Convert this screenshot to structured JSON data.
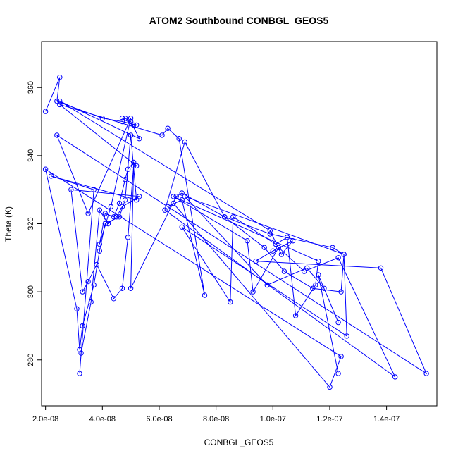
{
  "chart_data": {
    "type": "scatter",
    "mode": "lines+markers",
    "title": "ATOM2 Southbound CONBGL_GEOS5",
    "xlabel": "CONBGL_GEOS5",
    "ylabel": "Theta (K)",
    "xlim": [
      1.86e-08,
      1.577e-07
    ],
    "ylim": [
      266.5,
      373.5
    ],
    "xticks": [
      2e-08,
      4e-08,
      6e-08,
      8e-08,
      1e-07,
      1.2e-07,
      1.4e-07
    ],
    "xtick_labels": [
      "2.0e-08",
      "4.0e-08",
      "6.0e-08",
      "8.0e-08",
      "1.0e-07",
      "1.2e-07",
      "1.4e-07"
    ],
    "yticks": [
      280,
      300,
      320,
      340,
      360
    ],
    "ytick_labels": [
      "280",
      "300",
      "320",
      "340",
      "360"
    ],
    "grid": false,
    "legend": "none",
    "color": "#0000ff",
    "marker": "open-circle",
    "x": [
      2e-08,
      2.5e-08,
      2.4e-08,
      4e-08,
      4.7e-08,
      5.2e-08,
      5.1e-08,
      4.7e-08,
      4.8e-08,
      5e-08,
      5.3e-08,
      2.5e-08,
      9.9e-08,
      1.03e-07,
      1.07e-07,
      1e-07,
      9.4e-08,
      1.38e-07,
      1.54e-07,
      2.4e-08,
      3.5e-08,
      5e-08,
      4.3e-08,
      3.9e-08,
      4.1e-08,
      4.4e-08,
      4.6e-08,
      4.8e-08,
      4.9e-08,
      5.1e-08,
      5.2e-08,
      2.5e-08,
      6.1e-08,
      6.3e-08,
      6.7e-08,
      7.6e-08,
      6.8e-08,
      6.3e-08,
      6.5e-08,
      1.2e-07,
      1.24e-07,
      2e-08,
      3.1e-08,
      3.2e-08,
      3.3e-08,
      3.7e-08,
      3.9e-08,
      4.1e-08,
      4.6e-08,
      4.8e-08,
      5e-08,
      5.2e-08,
      2.2e-08,
      3.7e-08,
      3.2e-08,
      3.25e-08,
      3.6e-08,
      3.9e-08,
      4.2e-08,
      4.5e-08,
      4.7e-08,
      5.3e-08,
      2.9e-08,
      3.3e-08,
      3.5e-08,
      3.8e-08,
      4.4e-08,
      4.7e-08,
      4.9e-08,
      5.1e-08,
      5e-08,
      6.6e-08,
      6.8e-08,
      8.3e-08,
      9.9e-08,
      1.21e-07,
      1.25e-07,
      1.26e-07,
      6.8e-08,
      8.5e-08,
      8.6e-08,
      1.01e-07,
      1.05e-07,
      1.08e-07,
      1.15e-07,
      1.16e-07,
      6.5e-08,
      9.1e-08,
      9.3e-08,
      1.02e-07,
      1.11e-07,
      1.23e-07,
      1.43e-07,
      6.2e-08,
      6.9e-08,
      8.3e-08,
      9.7e-08,
      1.04e-07,
      1.14e-07,
      1.24e-07,
      1.25e-07,
      6.9e-08,
      9.8e-08,
      1.12e-07,
      1.18e-07,
      1.23e-07,
      1.16e-07,
      1.23e-07
    ],
    "y": [
      353,
      363,
      356,
      351,
      350,
      349,
      349,
      351,
      351,
      350,
      345,
      356,
      318,
      311,
      315,
      312,
      309,
      307,
      276,
      346,
      323,
      351,
      325,
      314,
      323,
      322,
      326,
      333,
      336,
      338,
      337,
      355,
      346,
      348,
      345,
      299,
      327,
      325,
      326,
      272,
      281,
      336,
      295,
      283,
      290,
      302,
      312,
      320,
      322,
      327,
      346,
      327,
      334,
      330,
      276,
      282,
      297,
      324,
      320,
      322,
      325,
      328,
      330,
      300,
      303,
      308,
      298,
      301,
      316,
      337,
      301,
      328,
      329,
      322,
      317,
      313,
      311,
      287,
      319,
      297,
      322,
      314,
      316,
      293,
      302,
      309,
      328,
      315,
      300,
      313,
      306,
      310,
      275,
      324,
      344,
      322,
      313,
      306,
      301,
      300,
      311,
      328,
      302,
      307,
      301,
      291,
      305,
      276
    ]
  }
}
